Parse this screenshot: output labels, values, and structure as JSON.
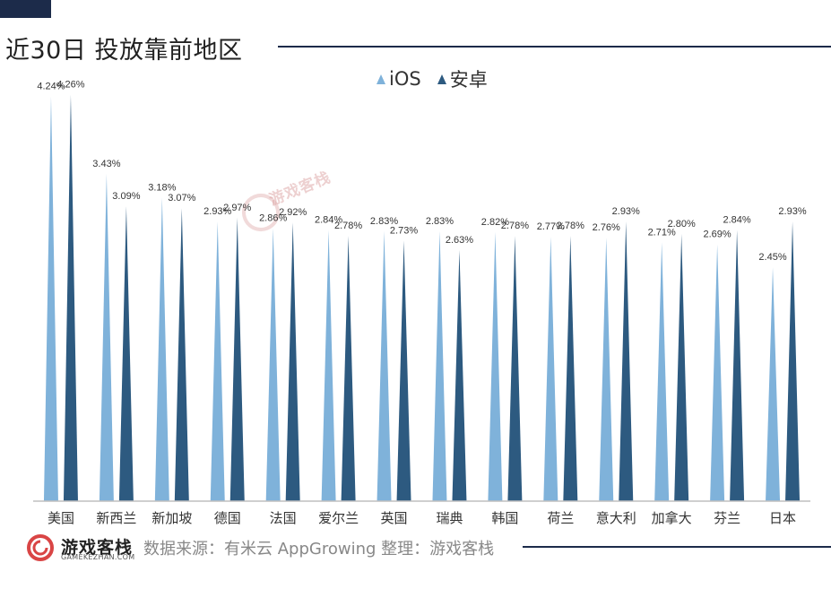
{
  "header": {
    "title": "近30日 投放靠前地区"
  },
  "watermark": {
    "text": "游戏客栈"
  },
  "footer": {
    "brand": "游戏客栈",
    "brand_sub": "GAMEKEZHAN.COM",
    "source": "数据来源：有米云 AppGrowing  整理：游戏客栈"
  },
  "colors": {
    "ios": "#7fb2da",
    "android": "#2d5a80",
    "accent": "#1c2b4a",
    "logo": "#d94545"
  },
  "chart_data": {
    "type": "bar",
    "mark_shape": "spike",
    "title": "",
    "xlabel": "",
    "ylabel": "",
    "ylim": [
      0,
      4.5
    ],
    "grid": false,
    "legend_position": "top-center",
    "categories": [
      "美国",
      "新西兰",
      "新加坡",
      "德国",
      "法国",
      "爱尔兰",
      "英国",
      "瑞典",
      "韩国",
      "荷兰",
      "意大利",
      "加拿大",
      "芬兰",
      "日本"
    ],
    "series": [
      {
        "name": "iOS",
        "color": "#7fb2da",
        "values": [
          4.24,
          3.43,
          3.18,
          2.93,
          2.86,
          2.84,
          2.83,
          2.83,
          2.82,
          2.77,
          2.76,
          2.71,
          2.69,
          2.45
        ],
        "labels": [
          "4.24%",
          "3.43%",
          "3.18%",
          "2.93%",
          "2.86%",
          "2.84%",
          "2.83%",
          "2.83%",
          "2.82%",
          "2.77%",
          "2.76%",
          "2.71%",
          "2.69%",
          "2.45%"
        ]
      },
      {
        "name": "安卓",
        "color": "#2d5a80",
        "values": [
          4.26,
          3.09,
          3.07,
          2.97,
          2.92,
          2.78,
          2.73,
          2.63,
          2.78,
          2.78,
          2.93,
          2.8,
          2.84,
          2.93
        ],
        "labels": [
          "4.26%",
          "3.09%",
          "3.07%",
          "2.97%",
          "2.92%",
          "2.78%",
          "2.73%",
          "2.63%",
          "2.78%",
          "2.78%",
          "2.93%",
          "2.80%",
          "2.84%",
          "2.93%"
        ]
      }
    ]
  }
}
